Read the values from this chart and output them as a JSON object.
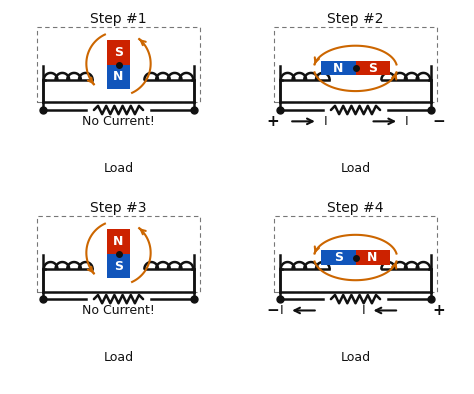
{
  "background_color": "#ffffff",
  "titles": [
    "Step #1",
    "Step #2",
    "Step #3",
    "Step #4"
  ],
  "red_color": "#cc2200",
  "blue_color": "#1155bb",
  "orange_color": "#cc6600",
  "black_color": "#111111"
}
